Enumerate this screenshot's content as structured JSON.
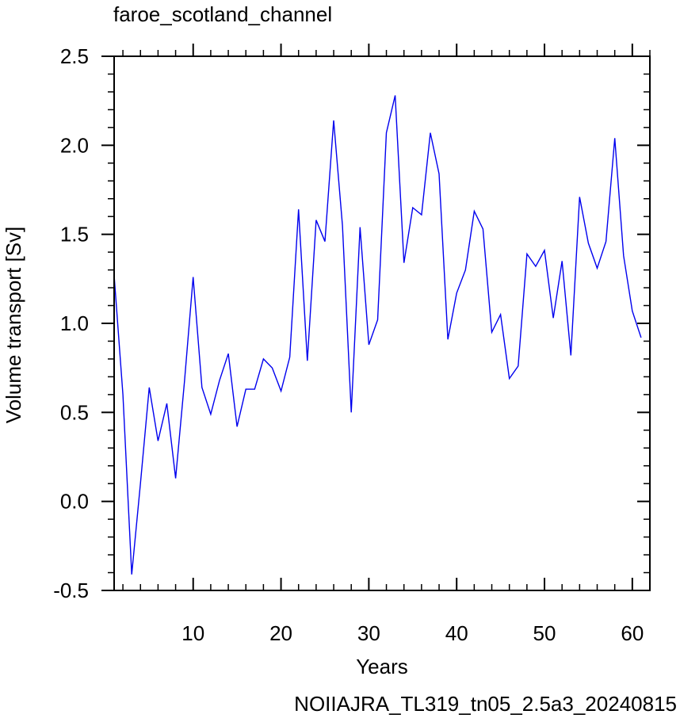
{
  "chart_data": {
    "type": "line",
    "title": "faroe_scotland_channel",
    "xlabel": "Years",
    "ylabel": "Volume transport [Sv]",
    "footer": "NOIIAJRA_TL319_tn05_2.5a3_20240815",
    "xlim": [
      1,
      62
    ],
    "ylim": [
      -0.5,
      2.5
    ],
    "x_ticks": [
      10,
      20,
      30,
      40,
      50,
      60
    ],
    "y_ticks": [
      -0.5,
      0.0,
      0.5,
      1.0,
      1.5,
      2.0,
      2.5
    ],
    "y_tick_labels": [
      "-0.5",
      "0.0",
      "0.5",
      "1.0",
      "1.5",
      "2.0",
      "2.5"
    ],
    "line_color": "#0000ee",
    "footer_color": "#0000ee",
    "grid": false,
    "series": [
      {
        "x": [
          1,
          2,
          3,
          4,
          5,
          6,
          7,
          8,
          9,
          10,
          11,
          12,
          13,
          14,
          15,
          16,
          17,
          18,
          19,
          20,
          21,
          22,
          23,
          24,
          25,
          26,
          27,
          28,
          29,
          30,
          31,
          32,
          33,
          34,
          35,
          36,
          37,
          38,
          39,
          40,
          41,
          42,
          43,
          44,
          45,
          46,
          47,
          48,
          49,
          50,
          51,
          52,
          53,
          54,
          55,
          56,
          57,
          58,
          59,
          60,
          61
        ],
        "values": [
          1.27,
          0.6,
          -0.41,
          0.1,
          0.64,
          0.34,
          0.55,
          0.13,
          0.67,
          1.26,
          0.64,
          0.49,
          0.68,
          0.83,
          0.42,
          0.63,
          0.63,
          0.8,
          0.75,
          0.62,
          0.81,
          1.64,
          0.79,
          1.58,
          1.46,
          2.14,
          1.55,
          0.5,
          1.54,
          0.88,
          1.02,
          2.07,
          2.28,
          1.34,
          1.65,
          1.61,
          2.07,
          1.84,
          0.91,
          1.17,
          1.3,
          1.63,
          1.53,
          0.95,
          1.05,
          0.69,
          0.76,
          1.39,
          1.32,
          1.41,
          1.03,
          1.35,
          0.82,
          1.71,
          1.45,
          1.31,
          1.46,
          2.04,
          1.38,
          1.07,
          0.92
        ]
      }
    ]
  }
}
